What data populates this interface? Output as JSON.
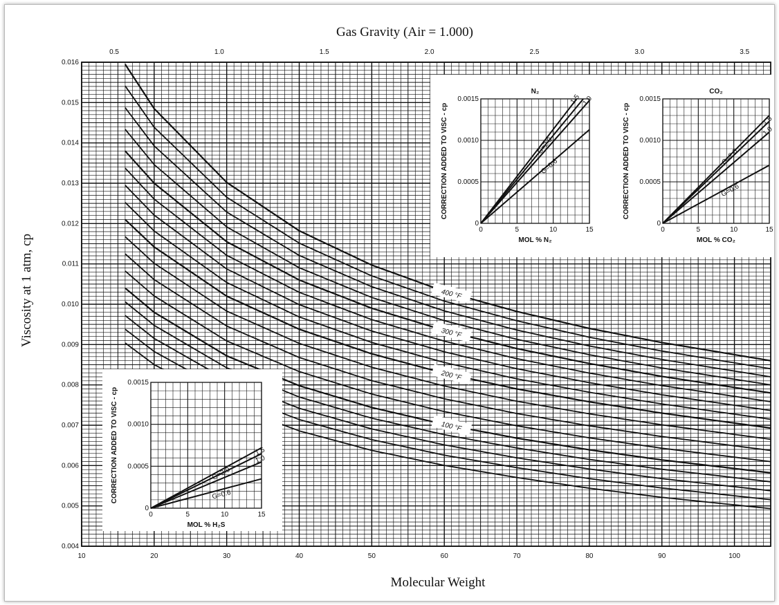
{
  "chart_data": {
    "type": "line",
    "title": "Gas Gravity (Air = 1.000)",
    "xlabel": "Molecular Weight",
    "ylabel": "Viscosity at 1 atm, cp",
    "xlim": [
      10,
      105
    ],
    "ylim": [
      0.004,
      0.016
    ],
    "x_ticks": [
      "10",
      "20",
      "30",
      "40",
      "50",
      "60",
      "70",
      "80",
      "90",
      "100"
    ],
    "y_ticks": [
      "0.004",
      "0.005",
      "0.006",
      "0.007",
      "0.008",
      "0.009",
      "0.010",
      "0.011",
      "0.012",
      "0.013",
      "0.014",
      "0.015",
      "0.016"
    ],
    "top_axis": {
      "ticks": [
        "0.5",
        "1.0",
        "1.5",
        "2.0",
        "2.5",
        "3.0",
        "3.5"
      ],
      "molecular_weight_per_unit": 28.97
    },
    "grid": true,
    "x": [
      16,
      20,
      30,
      40,
      50,
      60,
      70,
      80,
      90,
      105
    ],
    "series": [
      {
        "name": "400 °F",
        "values": [
          0.01595,
          0.01485,
          0.01302,
          0.01182,
          0.01097,
          0.01032,
          0.00982,
          0.0094,
          0.00905,
          0.0086
        ]
      },
      {
        "name": "300 °F",
        "values": [
          0.0138,
          0.013,
          0.01155,
          0.0106,
          0.0099,
          0.00935,
          0.0089,
          0.00853,
          0.00821,
          0.0078
        ]
      },
      {
        "name": "200 °F",
        "values": [
          0.0121,
          0.01142,
          0.0102,
          0.00938,
          0.00877,
          0.00829,
          0.0079,
          0.00758,
          0.0073,
          0.00693
        ]
      },
      {
        "name": "100 °F",
        "values": [
          0.0104,
          0.0098,
          0.00872,
          0.00798,
          0.00744,
          0.00702,
          0.00668,
          0.00639,
          0.00614,
          0.00582
        ]
      }
    ],
    "curve_labels": [
      "400 °F",
      "300 °F",
      "200 °F",
      "100 °F"
    ],
    "insets": [
      {
        "id": "n2",
        "title": "N₂",
        "xlabel": "MOL % N₂",
        "ylabel": "CORRECTION ADDED TO VISC - cp",
        "x_ticks": [
          "0",
          "5",
          "10",
          "15"
        ],
        "y_ticks": [
          "0",
          "0.0005",
          "0.0010",
          "0.0015"
        ],
        "xlim": [
          0,
          15
        ],
        "ylim": [
          0,
          0.0015
        ],
        "lines": [
          {
            "label": "1.5",
            "gravity": 1.5,
            "slope": 0.0001133
          },
          {
            "label": "G=2.0",
            "gravity": 2.0,
            "slope": 0.000106
          },
          {
            "label": "1.0",
            "gravity": 1.0,
            "slope": 9.87e-05
          },
          {
            "label": "G=0.6",
            "gravity": 0.6,
            "slope": 7.53e-05
          }
        ]
      },
      {
        "id": "co2",
        "title": "CO₂",
        "xlabel": "MOL % CO₂",
        "ylabel": "CORRECTION ADDED TO VISC - cp",
        "x_ticks": [
          "0",
          "5",
          "10",
          "15"
        ],
        "y_ticks": [
          "0",
          "0.0005",
          "0.0010",
          "0.0015"
        ],
        "xlim": [
          0,
          15
        ],
        "ylim": [
          0,
          0.0015
        ],
        "lines": [
          {
            "label": "G=2.0",
            "gravity": 2.0,
            "slope": 8.67e-05
          },
          {
            "label": "1.5",
            "gravity": 1.5,
            "slope": 8.2e-05
          },
          {
            "label": "1.0",
            "gravity": 1.0,
            "slope": 7.33e-05
          },
          {
            "label": "G=0.6",
            "gravity": 0.6,
            "slope": 4.67e-05
          }
        ]
      },
      {
        "id": "h2s",
        "title": "",
        "xlabel": "MOL % H₂S",
        "ylabel": "CORRECTION ADDED TO VISC - cp",
        "x_ticks": [
          "0",
          "5",
          "10",
          "15"
        ],
        "y_ticks": [
          "0",
          "0.0005",
          "0.0010",
          "0.0015"
        ],
        "xlim": [
          0,
          15
        ],
        "ylim": [
          0,
          0.0015
        ],
        "lines": [
          {
            "label": "G=2.0",
            "gravity": 2.0,
            "slope": 4.8e-05
          },
          {
            "label": "1.5",
            "gravity": 1.5,
            "slope": 4.33e-05
          },
          {
            "label": "1.0",
            "gravity": 1.0,
            "slope": 3.67e-05
          },
          {
            "label": "G=0.6",
            "gravity": 0.6,
            "slope": 2.33e-05
          }
        ]
      }
    ]
  }
}
